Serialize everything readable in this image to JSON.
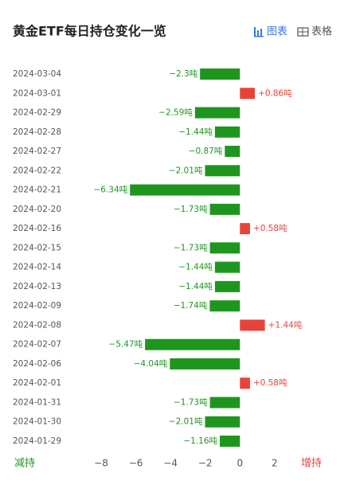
{
  "tabs": [
    "图表",
    "表格"
  ],
  "chart_data": {
    "type": "bar",
    "orientation": "horizontal",
    "title": "黄金ETF每日持仓变化一览",
    "categories": [
      "2024-03-04",
      "2024-03-01",
      "2024-02-29",
      "2024-02-28",
      "2024-02-27",
      "2024-02-22",
      "2024-02-21",
      "2024-02-20",
      "2024-02-16",
      "2024-02-15",
      "2024-02-14",
      "2024-02-13",
      "2024-02-09",
      "2024-02-08",
      "2024-02-07",
      "2024-02-06",
      "2024-02-01",
      "2024-01-31",
      "2024-01-30",
      "2024-01-29"
    ],
    "values": [
      -2.3,
      0.86,
      -2.59,
      -1.44,
      -0.87,
      -2.01,
      -6.34,
      -1.73,
      0.58,
      -1.73,
      -1.44,
      -1.44,
      -1.74,
      1.44,
      -5.47,
      -4.04,
      0.58,
      -1.73,
      -2.01,
      -1.16
    ],
    "value_labels": [
      "−2.3吨",
      "+0.86吨",
      "−2.59吨",
      "−1.44吨",
      "−0.87吨",
      "−2.01吨",
      "−6.34吨",
      "−1.73吨",
      "+0.58吨",
      "−1.73吨",
      "−1.44吨",
      "−1.44吨",
      "−1.74吨",
      "+1.44吨",
      "−5.47吨",
      "−4.04吨",
      "+0.58吨",
      "−1.73吨",
      "−2.01吨",
      "−1.16吨"
    ],
    "positive_color": "#e8433b",
    "negative_color": "#1e961e",
    "xlim": [
      -8.8,
      3.2
    ],
    "xticks": [
      {
        "value": -8,
        "label": "−8"
      },
      {
        "value": -6,
        "label": "−6"
      },
      {
        "value": -4,
        "label": "−4"
      },
      {
        "value": -2,
        "label": "−2"
      },
      0,
      2
    ],
    "axis_labels": {
      "left": "减持",
      "right": "增持"
    }
  }
}
